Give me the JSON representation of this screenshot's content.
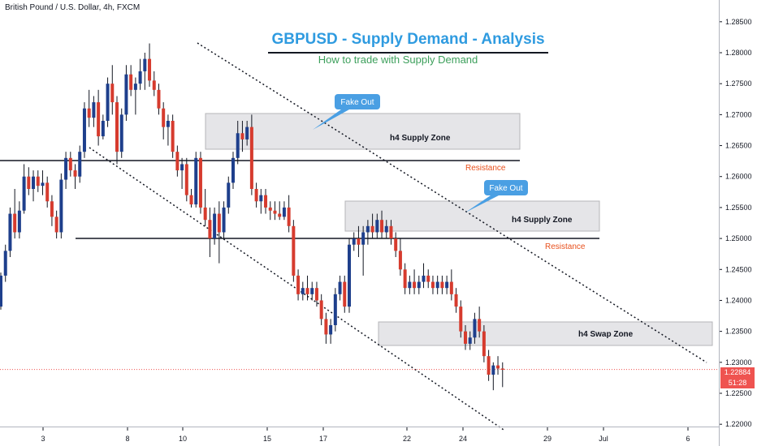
{
  "header": {
    "symbol_info": "British Pound / U.S. Dollar, 4h, FXCM",
    "title": "GBPUSD - Supply Demand - Analysis",
    "subtitle": "How to trade with Supply Demand"
  },
  "price_tags": {
    "last_price": "1.22884",
    "countdown": "51:28"
  },
  "colors": {
    "bull": "#1e3f8c",
    "bear": "#d63b2e",
    "zone_fill": "#e5e5e8",
    "zone_stroke": "#b5b5b8",
    "resistance_text": "#e8501d",
    "callout": "#4a9fe3",
    "last_price": "#ef5350"
  },
  "chart_data": {
    "type": "candlestick",
    "y_axis": {
      "ticks": [
        "1.28500",
        "1.28000",
        "1.27500",
        "1.27000",
        "1.26500",
        "1.26000",
        "1.25500",
        "1.25000",
        "1.24500",
        "1.24000",
        "1.23500",
        "1.23000",
        "1.22500",
        "1.22000"
      ],
      "range": [
        1.2195,
        1.2885
      ]
    },
    "x_axis": {
      "ticks": [
        "3",
        "8",
        "10",
        "15",
        "17",
        "22",
        "24",
        "29",
        "Jul",
        "6"
      ],
      "range": [
        0,
        127
      ]
    },
    "candles": [
      [
        1.239,
        1.2445,
        1.2385,
        1.244
      ],
      [
        1.244,
        1.249,
        1.243,
        1.248
      ],
      [
        1.248,
        1.255,
        1.247,
        1.254
      ],
      [
        1.254,
        1.258,
        1.25,
        1.251
      ],
      [
        1.251,
        1.256,
        1.25,
        1.2545
      ],
      [
        1.2545,
        1.262,
        1.254,
        1.26
      ],
      [
        1.26,
        1.2615,
        1.257,
        1.258
      ],
      [
        1.258,
        1.261,
        1.256,
        1.26
      ],
      [
        1.26,
        1.261,
        1.2575,
        1.2585
      ],
      [
        1.2585,
        1.261,
        1.257,
        1.259
      ],
      [
        1.259,
        1.26,
        1.255,
        1.256
      ],
      [
        1.256,
        1.257,
        1.252,
        1.2535
      ],
      [
        1.2535,
        1.2545,
        1.25,
        1.251
      ],
      [
        1.251,
        1.2605,
        1.25,
        1.2595
      ],
      [
        1.2595,
        1.264,
        1.258,
        1.263
      ],
      [
        1.263,
        1.264,
        1.26,
        1.261
      ],
      [
        1.261,
        1.262,
        1.258,
        1.26
      ],
      [
        1.26,
        1.265,
        1.259,
        1.264
      ],
      [
        1.264,
        1.272,
        1.263,
        1.271
      ],
      [
        1.271,
        1.274,
        1.268,
        1.2695
      ],
      [
        1.2695,
        1.273,
        1.268,
        1.272
      ],
      [
        1.272,
        1.274,
        1.265,
        1.2665
      ],
      [
        1.2665,
        1.27,
        1.266,
        1.269
      ],
      [
        1.269,
        1.276,
        1.268,
        1.275
      ],
      [
        1.275,
        1.278,
        1.27,
        1.272
      ],
      [
        1.272,
        1.273,
        1.262,
        1.264
      ],
      [
        1.264,
        1.271,
        1.263,
        1.27
      ],
      [
        1.27,
        1.278,
        1.269,
        1.2765
      ],
      [
        1.2765,
        1.278,
        1.273,
        1.274
      ],
      [
        1.274,
        1.276,
        1.27,
        1.275
      ],
      [
        1.275,
        1.279,
        1.274,
        1.277
      ],
      [
        1.277,
        1.28,
        1.274,
        1.279
      ],
      [
        1.279,
        1.2815,
        1.2745,
        1.2755
      ],
      [
        1.2755,
        1.277,
        1.273,
        1.274
      ],
      [
        1.274,
        1.275,
        1.27,
        1.271
      ],
      [
        1.271,
        1.272,
        1.266,
        1.268
      ],
      [
        1.268,
        1.27,
        1.265,
        1.269
      ],
      [
        1.269,
        1.27,
        1.263,
        1.264
      ],
      [
        1.264,
        1.265,
        1.26,
        1.261
      ],
      [
        1.261,
        1.263,
        1.258,
        1.262
      ],
      [
        1.262,
        1.263,
        1.256,
        1.257
      ],
      [
        1.257,
        1.258,
        1.255,
        1.2555
      ],
      [
        1.2555,
        1.264,
        1.255,
        1.263
      ],
      [
        1.263,
        1.264,
        1.254,
        1.255
      ],
      [
        1.255,
        1.258,
        1.252,
        1.253
      ],
      [
        1.253,
        1.255,
        1.247,
        1.25
      ],
      [
        1.25,
        1.255,
        1.249,
        1.254
      ],
      [
        1.254,
        1.256,
        1.246,
        1.251
      ],
      [
        1.251,
        1.256,
        1.25,
        1.255
      ],
      [
        1.255,
        1.26,
        1.254,
        1.259
      ],
      [
        1.259,
        1.264,
        1.258,
        1.263
      ],
      [
        1.263,
        1.269,
        1.262,
        1.267
      ],
      [
        1.267,
        1.269,
        1.264,
        1.266
      ],
      [
        1.266,
        1.269,
        1.265,
        1.268
      ],
      [
        1.268,
        1.27,
        1.257,
        1.258
      ],
      [
        1.258,
        1.259,
        1.255,
        1.256
      ],
      [
        1.256,
        1.258,
        1.254,
        1.257
      ],
      [
        1.257,
        1.258,
        1.254,
        1.255
      ],
      [
        1.255,
        1.256,
        1.253,
        1.2545
      ],
      [
        1.2545,
        1.256,
        1.253,
        1.254
      ],
      [
        1.254,
        1.256,
        1.253,
        1.2535
      ],
      [
        1.2535,
        1.256,
        1.253,
        1.255
      ],
      [
        1.255,
        1.257,
        1.251,
        1.252
      ],
      [
        1.252,
        1.253,
        1.243,
        1.244
      ],
      [
        1.244,
        1.245,
        1.24,
        1.241
      ],
      [
        1.241,
        1.243,
        1.24,
        1.242
      ],
      [
        1.242,
        1.244,
        1.24,
        1.241
      ],
      [
        1.241,
        1.243,
        1.24,
        1.242
      ],
      [
        1.242,
        1.243,
        1.239,
        1.24
      ],
      [
        1.24,
        1.241,
        1.236,
        1.237
      ],
      [
        1.237,
        1.238,
        1.233,
        1.2345
      ],
      [
        1.2345,
        1.237,
        1.233,
        1.236
      ],
      [
        1.236,
        1.242,
        1.235,
        1.241
      ],
      [
        1.241,
        1.244,
        1.24,
        1.243
      ],
      [
        1.243,
        1.244,
        1.238,
        1.239
      ],
      [
        1.239,
        1.25,
        1.238,
        1.249
      ],
      [
        1.249,
        1.251,
        1.248,
        1.25
      ],
      [
        1.25,
        1.252,
        1.247,
        1.249
      ],
      [
        1.249,
        1.252,
        1.244,
        1.251
      ],
      [
        1.251,
        1.253,
        1.249,
        1.252
      ],
      [
        1.252,
        1.254,
        1.25,
        1.251
      ],
      [
        1.251,
        1.254,
        1.25,
        1.253
      ],
      [
        1.253,
        1.2545,
        1.25,
        1.251
      ],
      [
        1.251,
        1.253,
        1.25,
        1.252
      ],
      [
        1.252,
        1.253,
        1.249,
        1.25
      ],
      [
        1.25,
        1.251,
        1.247,
        1.248
      ],
      [
        1.248,
        1.25,
        1.244,
        1.245
      ],
      [
        1.245,
        1.246,
        1.241,
        1.242
      ],
      [
        1.242,
        1.244,
        1.241,
        1.243
      ],
      [
        1.243,
        1.245,
        1.241,
        1.242
      ],
      [
        1.242,
        1.244,
        1.241,
        1.243
      ],
      [
        1.243,
        1.246,
        1.242,
        1.244
      ],
      [
        1.244,
        1.245,
        1.242,
        1.243
      ],
      [
        1.243,
        1.244,
        1.241,
        1.242
      ],
      [
        1.242,
        1.244,
        1.241,
        1.243
      ],
      [
        1.243,
        1.244,
        1.241,
        1.242
      ],
      [
        1.242,
        1.244,
        1.241,
        1.243
      ],
      [
        1.243,
        1.245,
        1.24,
        1.241
      ],
      [
        1.241,
        1.242,
        1.238,
        1.239
      ],
      [
        1.239,
        1.24,
        1.234,
        1.235
      ],
      [
        1.235,
        1.236,
        1.232,
        1.233
      ],
      [
        1.233,
        1.235,
        1.232,
        1.234
      ],
      [
        1.234,
        1.238,
        1.233,
        1.237
      ],
      [
        1.237,
        1.239,
        1.234,
        1.235
      ],
      [
        1.235,
        1.236,
        1.23,
        1.231
      ],
      [
        1.231,
        1.232,
        1.227,
        1.228
      ],
      [
        1.228,
        1.23,
        1.2255,
        1.2295
      ],
      [
        1.2295,
        1.231,
        1.228,
        1.229
      ],
      [
        1.229,
        1.23,
        1.226,
        1.2288
      ]
    ],
    "annotations": {
      "zones": [
        {
          "label": "h4 Supply Zone",
          "from_index": 44,
          "to_index": 79,
          "price_top": 1.27,
          "price_bottom": 1.2645
        },
        {
          "label": "h4 Supply Zone",
          "from_index": 72,
          "to_index": 110,
          "price_top": 1.2565,
          "price_bottom": 1.2515
        },
        {
          "label": "h4 Swap Zone",
          "from_index": 70,
          "to_index": 118,
          "price_top": 1.2368,
          "price_bottom": 1.2332
        }
      ],
      "resistance": [
        {
          "label": "Resistance",
          "price": 1.2627
        },
        {
          "label": "Resistance",
          "price": 1.2502
        }
      ],
      "callouts": [
        {
          "label": "Fake Out"
        },
        {
          "label": "Fake Out"
        }
      ]
    },
    "last_price": 1.22884
  }
}
